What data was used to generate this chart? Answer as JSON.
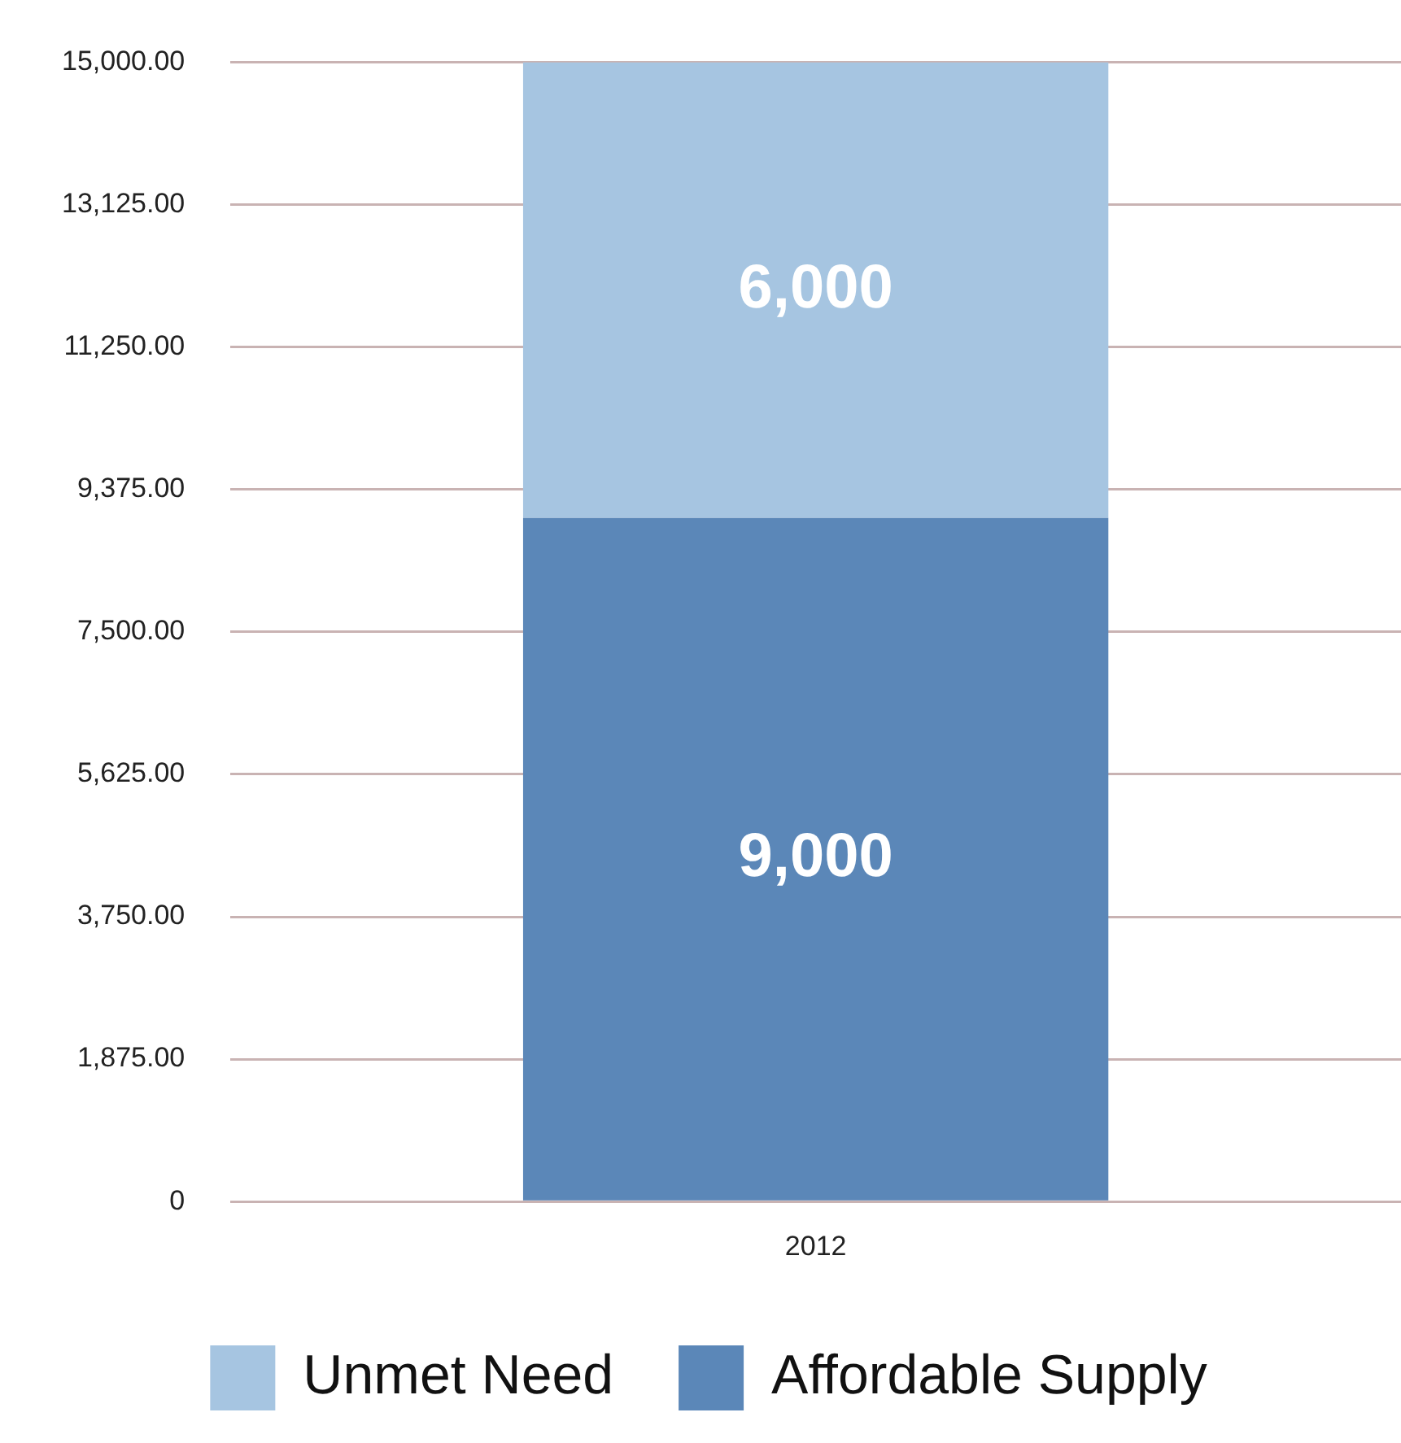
{
  "chart_data": {
    "type": "bar",
    "stacked": true,
    "categories": [
      "2012"
    ],
    "series": [
      {
        "name": "Affordable Supply",
        "color": "#5b87b8",
        "values": [
          9000
        ],
        "value_labels": [
          "9,000"
        ]
      },
      {
        "name": "Unmet Need",
        "color": "#a6c5e1",
        "values": [
          6000
        ],
        "value_labels": [
          "6,000"
        ]
      }
    ],
    "ylim": [
      0,
      15000
    ],
    "yticks": [
      {
        "value": 0,
        "label": "0"
      },
      {
        "value": 1875,
        "label": "1,875.00"
      },
      {
        "value": 3750,
        "label": "3,750.00"
      },
      {
        "value": 5625,
        "label": "5,625.00"
      },
      {
        "value": 7500,
        "label": "7,500.00"
      },
      {
        "value": 9375,
        "label": "9,375.00"
      },
      {
        "value": 11250,
        "label": "11,250.00"
      },
      {
        "value": 13125,
        "label": "13,125.00"
      },
      {
        "value": 15000,
        "label": "15,000.00"
      }
    ],
    "grid": "y",
    "legend": "bottom"
  }
}
